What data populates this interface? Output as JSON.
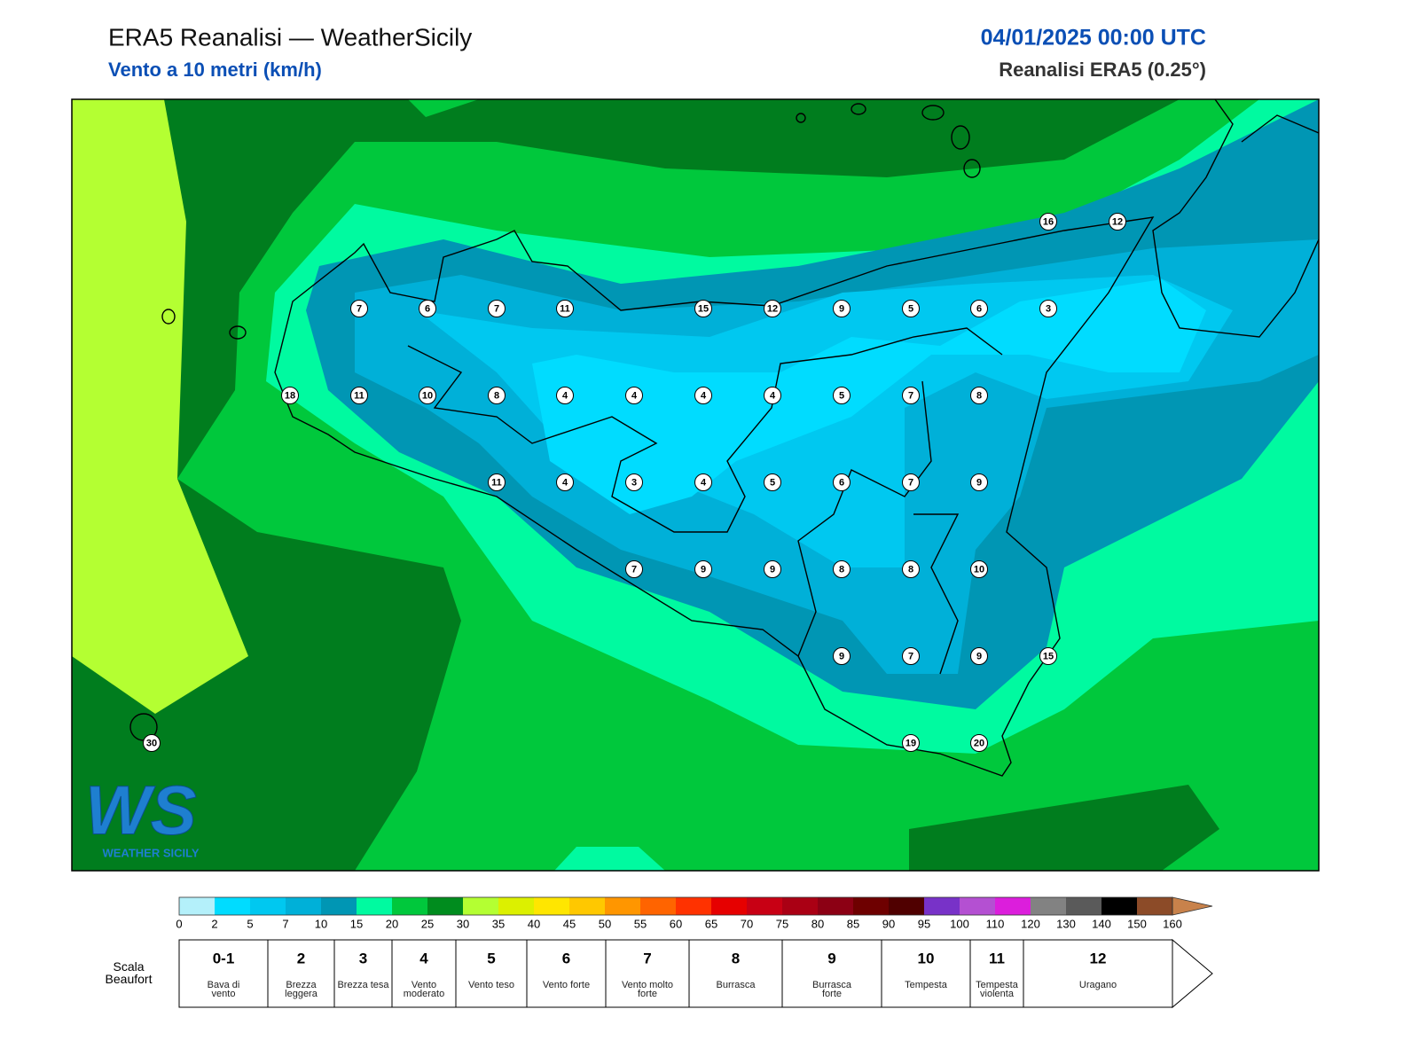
{
  "header": {
    "title": "ERA5 Reanalisi — WeatherSicily",
    "subtitle": "Vento a 10 metri (km/h)",
    "datetime": "04/01/2025 00:00 UTC",
    "source": "Reanalisi ERA5 (0.25°)"
  },
  "map": {
    "wind_points": [
      16,
      12,
      7,
      6,
      7,
      11,
      15,
      12,
      9,
      5,
      6,
      3,
      18,
      11,
      10,
      8,
      4,
      4,
      4,
      4,
      5,
      7,
      8,
      11,
      4,
      3,
      4,
      5,
      6,
      7,
      9,
      7,
      9,
      9,
      8,
      8,
      10,
      9,
      7,
      9,
      15,
      30,
      19,
      20
    ]
  },
  "logo": {
    "mark": "WS",
    "caption": "WEATHER SICILY"
  },
  "colorbar": {
    "ticks": [
      0,
      2,
      5,
      7,
      10,
      15,
      20,
      25,
      30,
      35,
      40,
      45,
      50,
      55,
      60,
      65,
      70,
      75,
      80,
      85,
      90,
      95,
      100,
      110,
      120,
      130,
      140,
      150,
      160
    ],
    "colors": [
      "#b4f0fa",
      "#00dcff",
      "#00c8f0",
      "#00b0d8",
      "#0096b4",
      "#00faa0",
      "#00c83c",
      "#008c1e",
      "#b4ff32",
      "#dcf000",
      "#ffe600",
      "#ffc800",
      "#ff9600",
      "#ff6400",
      "#ff3200",
      "#e60000",
      "#c80014",
      "#aa0014",
      "#8c0014",
      "#6e0000",
      "#500000",
      "#7832c8",
      "#b450d2",
      "#dc1edc",
      "#828282",
      "#5a5a5a",
      "#000000",
      "#8c4b28"
    ],
    "over_color": "#c8824b"
  },
  "beaufort": {
    "label": "Scala Beaufort",
    "levels": [
      {
        "force": "0-1",
        "description": "Bava di vento"
      },
      {
        "force": 2,
        "description": "Brezza leggera"
      },
      {
        "force": 3,
        "description": "Brezza tesa"
      },
      {
        "force": 4,
        "description": "Vento moderato"
      },
      {
        "force": 5,
        "description": "Vento teso"
      },
      {
        "force": 6,
        "description": "Vento forte"
      },
      {
        "force": 7,
        "description": "Vento molto forte"
      },
      {
        "force": 8,
        "description": "Burrasca"
      },
      {
        "force": 9,
        "description": "Burrasca forte"
      },
      {
        "force": 10,
        "description": "Tempesta"
      },
      {
        "force": 11,
        "description": "Tempesta violenta"
      },
      {
        "force": 12,
        "description": "Uragano"
      }
    ]
  }
}
